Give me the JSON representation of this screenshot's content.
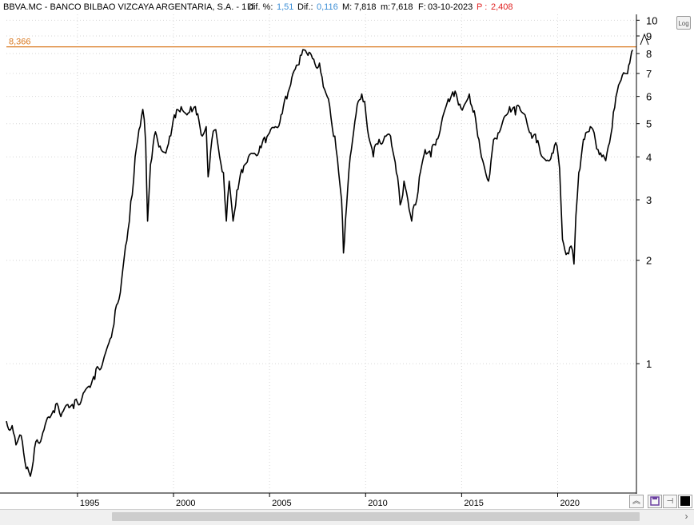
{
  "header": {
    "symbol": "BBVA.MC - BANCO BILBAO VIZCAYA ARGENTARIA, S.A. - 1 d",
    "dif_pct_label": "Dif. %:",
    "dif_pct_value": "1,51",
    "dif_label": "Dif.:",
    "dif_value": "0,116",
    "max_label": "M:",
    "max_value": "7,818",
    "min_label": "m:",
    "min_value": "7,618",
    "date_label": "F:",
    "date_value": "03-10-2023",
    "p_label": "P :",
    "p_value": "2,408"
  },
  "controls": {
    "log_label": "Log",
    "log_icon": "log-scale-icon",
    "collapse_icon": "double-chevron-up-icon",
    "save_icon": "save-disk-icon",
    "pin_icon": "pin-icon",
    "color_icon": "black-square-icon",
    "scroll_right_icon": "arrow-right-icon"
  },
  "colors": {
    "price_line": "#000000",
    "reference_line": "#d9781f",
    "reference_label": "#d9781f",
    "accent_blue": "#3d8fd6",
    "accent_red": "#e02020"
  },
  "chart_data": {
    "type": "line",
    "scale": "log",
    "y_ticks": [
      1,
      2,
      3,
      4,
      5,
      6,
      7,
      8,
      9,
      10
    ],
    "y_tick_labels": [
      "1",
      "2",
      "3",
      "4",
      "5",
      "6",
      "7",
      "8",
      "9",
      "10"
    ],
    "x_ticks": [
      1995,
      2000,
      2005,
      2010,
      2015,
      2020
    ],
    "x_tick_labels": [
      "1995",
      "2000",
      "2005",
      "2010",
      "2015",
      "2020"
    ],
    "xlim": [
      1991.3,
      2024.1
    ],
    "ylim": [
      0.42,
      10.4
    ],
    "reference_line": {
      "value": 8.366,
      "label": "8,366"
    },
    "series": [
      {
        "values": [
          [
            1991.3,
            0.68
          ],
          [
            1991.6,
            0.66
          ],
          [
            1991.8,
            0.58
          ],
          [
            1992.0,
            0.62
          ],
          [
            1992.2,
            0.55
          ],
          [
            1992.4,
            0.5
          ],
          [
            1992.55,
            0.47
          ],
          [
            1992.7,
            0.52
          ],
          [
            1992.9,
            0.6
          ],
          [
            1993.2,
            0.63
          ],
          [
            1993.5,
            0.7
          ],
          [
            1993.8,
            0.72
          ],
          [
            1994.0,
            0.75
          ],
          [
            1994.2,
            0.72
          ],
          [
            1994.5,
            0.76
          ],
          [
            1994.8,
            0.74
          ],
          [
            1995.0,
            0.77
          ],
          [
            1995.3,
            0.82
          ],
          [
            1995.6,
            0.86
          ],
          [
            1995.9,
            0.9
          ],
          [
            1996.1,
            0.97
          ],
          [
            1996.4,
            1.05
          ],
          [
            1996.7,
            1.18
          ],
          [
            1996.9,
            1.3
          ],
          [
            1997.1,
            1.5
          ],
          [
            1997.3,
            1.75
          ],
          [
            1997.5,
            2.2
          ],
          [
            1997.7,
            2.6
          ],
          [
            1997.85,
            3.1
          ],
          [
            1998.0,
            4.0
          ],
          [
            1998.2,
            4.8
          ],
          [
            1998.4,
            5.5
          ],
          [
            1998.55,
            4.4
          ],
          [
            1998.65,
            2.6
          ],
          [
            1998.8,
            3.8
          ],
          [
            1999.0,
            4.6
          ],
          [
            1999.3,
            4.3
          ],
          [
            1999.6,
            4.1
          ],
          [
            1999.8,
            4.6
          ],
          [
            2000.1,
            5.2
          ],
          [
            2000.4,
            5.6
          ],
          [
            2000.7,
            5.3
          ],
          [
            2000.9,
            5.6
          ],
          [
            2001.2,
            5.3
          ],
          [
            2001.5,
            4.6
          ],
          [
            2001.7,
            4.9
          ],
          [
            2001.8,
            3.5
          ],
          [
            2002.0,
            4.5
          ],
          [
            2002.2,
            4.8
          ],
          [
            2002.4,
            4.0
          ],
          [
            2002.6,
            3.6
          ],
          [
            2002.75,
            2.6
          ],
          [
            2002.9,
            3.4
          ],
          [
            2003.1,
            2.6
          ],
          [
            2003.3,
            3.2
          ],
          [
            2003.6,
            3.6
          ],
          [
            2003.9,
            4.0
          ],
          [
            2004.2,
            4.1
          ],
          [
            2004.5,
            4.3
          ],
          [
            2004.8,
            4.4
          ],
          [
            2005.0,
            4.7
          ],
          [
            2005.3,
            4.9
          ],
          [
            2005.6,
            5.3
          ],
          [
            2005.9,
            5.9
          ],
          [
            2006.1,
            6.5
          ],
          [
            2006.4,
            7.4
          ],
          [
            2006.6,
            7.9
          ],
          [
            2006.8,
            8.2
          ],
          [
            2007.0,
            7.9
          ],
          [
            2007.3,
            7.7
          ],
          [
            2007.6,
            7.5
          ],
          [
            2007.8,
            6.4
          ],
          [
            2008.0,
            6.0
          ],
          [
            2008.2,
            5.2
          ],
          [
            2008.4,
            4.6
          ],
          [
            2008.6,
            3.6
          ],
          [
            2008.75,
            3.0
          ],
          [
            2008.85,
            2.1
          ],
          [
            2008.95,
            2.6
          ],
          [
            2009.2,
            4.0
          ],
          [
            2009.5,
            5.3
          ],
          [
            2009.8,
            6.1
          ],
          [
            2009.95,
            5.8
          ],
          [
            2010.1,
            4.8
          ],
          [
            2010.4,
            4.0
          ],
          [
            2010.7,
            4.5
          ],
          [
            2011.0,
            4.6
          ],
          [
            2011.3,
            4.6
          ],
          [
            2011.6,
            3.6
          ],
          [
            2011.8,
            2.9
          ],
          [
            2012.0,
            3.4
          ],
          [
            2012.2,
            3.0
          ],
          [
            2012.4,
            2.6
          ],
          [
            2012.6,
            2.9
          ],
          [
            2012.8,
            3.5
          ],
          [
            2013.1,
            4.2
          ],
          [
            2013.4,
            4.0
          ],
          [
            2013.7,
            4.5
          ],
          [
            2014.0,
            5.2
          ],
          [
            2014.3,
            5.9
          ],
          [
            2014.6,
            6.0
          ],
          [
            2014.9,
            5.7
          ],
          [
            2015.1,
            5.6
          ],
          [
            2015.4,
            6.1
          ],
          [
            2015.6,
            5.4
          ],
          [
            2015.9,
            4.5
          ],
          [
            2016.1,
            3.9
          ],
          [
            2016.4,
            3.4
          ],
          [
            2016.6,
            4.2
          ],
          [
            2016.9,
            4.7
          ],
          [
            2017.2,
            5.2
          ],
          [
            2017.5,
            5.6
          ],
          [
            2017.8,
            5.3
          ],
          [
            2018.0,
            5.6
          ],
          [
            2018.3,
            5.3
          ],
          [
            2018.6,
            4.7
          ],
          [
            2018.9,
            4.4
          ],
          [
            2019.1,
            4.1
          ],
          [
            2019.4,
            3.9
          ],
          [
            2019.7,
            4.1
          ],
          [
            2019.9,
            4.4
          ],
          [
            2020.1,
            3.7
          ],
          [
            2020.25,
            2.3
          ],
          [
            2020.5,
            2.1
          ],
          [
            2020.7,
            2.2
          ],
          [
            2020.85,
            1.95
          ],
          [
            2020.95,
            2.7
          ],
          [
            2021.1,
            3.6
          ],
          [
            2021.4,
            4.5
          ],
          [
            2021.7,
            4.9
          ],
          [
            2021.9,
            4.7
          ],
          [
            2022.1,
            4.2
          ],
          [
            2022.3,
            4.0
          ],
          [
            2022.5,
            3.9
          ],
          [
            2022.7,
            4.4
          ],
          [
            2022.9,
            5.4
          ],
          [
            2023.1,
            6.2
          ],
          [
            2023.3,
            6.7
          ],
          [
            2023.5,
            7.0
          ],
          [
            2023.7,
            7.4
          ],
          [
            2023.8,
            7.8
          ],
          [
            2023.9,
            8.2
          ]
        ]
      }
    ]
  }
}
